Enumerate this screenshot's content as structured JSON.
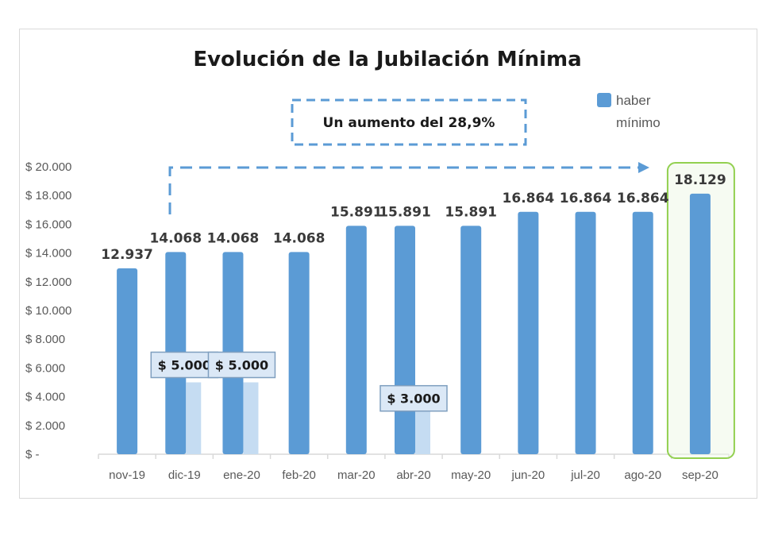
{
  "chart_data": {
    "type": "bar",
    "title": "Evolución de la Jubilación Mínima",
    "categories": [
      "nov-19",
      "dic-19",
      "ene-20",
      "feb-20",
      "mar-20",
      "abr-20",
      "may-20",
      "jun-20",
      "jul-20",
      "ago-20",
      "sep-20"
    ],
    "series": [
      {
        "name": "haber mínimo",
        "values": [
          12937,
          14068,
          14068,
          14068,
          15891,
          15891,
          15891,
          16864,
          16864,
          16864,
          18129
        ],
        "labels": [
          "12.937",
          "14.068",
          "14.068",
          "14.068",
          "15.891",
          "15.891",
          "15.891",
          "16.864",
          "16.864",
          "16.864",
          "18.129"
        ]
      },
      {
        "values": [
          null,
          5000,
          5000,
          null,
          null,
          3000,
          null,
          null,
          null,
          null,
          null
        ],
        "labels": [
          null,
          "$ 5.000",
          "$ 5.000",
          null,
          null,
          "$ 3.000",
          null,
          null,
          null,
          null,
          null
        ]
      }
    ],
    "yticks": [
      0,
      2000,
      4000,
      6000,
      8000,
      10000,
      12000,
      14000,
      16000,
      18000,
      20000
    ],
    "ytick_labels": [
      "$ -",
      "$ 2.000",
      "$ 4.000",
      "$ 6.000",
      "$ 8.000",
      "$ 10.000",
      "$ 12.000",
      "$ 14.000",
      "$ 16.000",
      "$ 18.000",
      "$ 20.000"
    ],
    "ylim": [
      0,
      20000
    ],
    "grid": false,
    "legend": "top-right",
    "annotation": "Un aumento del 28,9%",
    "highlight_category": "sep-20"
  },
  "legend": {
    "line1": "haber",
    "line2": "mínimo"
  },
  "colors": {
    "main": "#5b9bd5",
    "bonus": "#c5dcf2",
    "highlight": "#92d050",
    "dash": "#5b9bd5"
  }
}
